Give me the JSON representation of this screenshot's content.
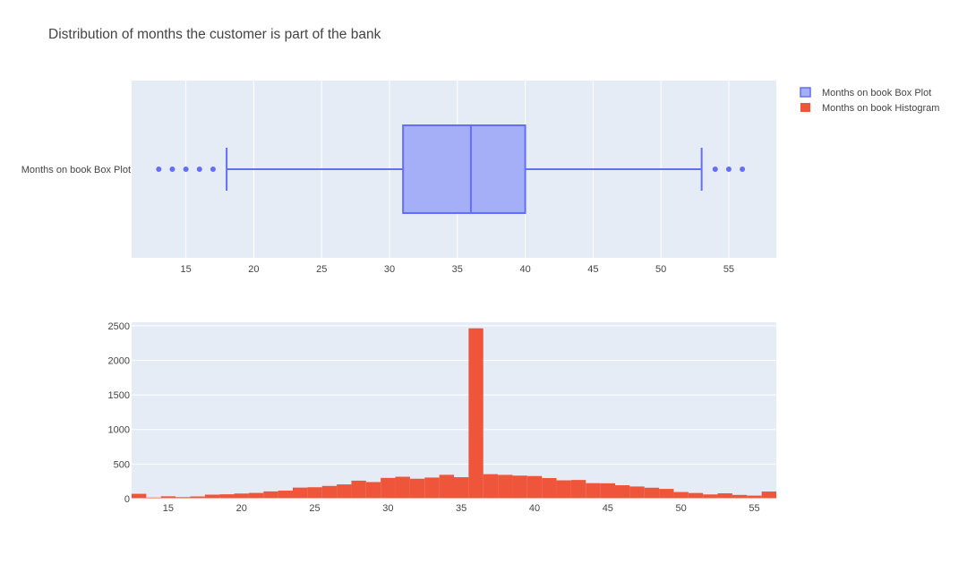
{
  "chart_data": [
    {
      "type": "box",
      "title": "Distribution of months the customer is part of the bank",
      "series_name": "Months on book Box Plot",
      "y_category_label": "Months on book Box Plot",
      "orientation": "horizontal",
      "stats": {
        "lower_fence": 18,
        "q1": 31,
        "median": 36,
        "q3": 40,
        "upper_fence": 53
      },
      "outliers": [
        13,
        14,
        15,
        16,
        17,
        54,
        55,
        56
      ],
      "xlim": [
        11,
        58.5
      ],
      "xticks": [
        15,
        20,
        25,
        30,
        35,
        40,
        45,
        50,
        55
      ],
      "grid": true,
      "colors": {
        "fill": "#a5aff7",
        "line": "#636efa"
      }
    },
    {
      "type": "bar",
      "series_name": "Months on book Histogram",
      "bin_starts": [
        13,
        14,
        15,
        16,
        17,
        18,
        19,
        20,
        21,
        22,
        23,
        24,
        25,
        26,
        27,
        28,
        29,
        30,
        31,
        32,
        33,
        34,
        35,
        36,
        37,
        38,
        39,
        40,
        41,
        42,
        43,
        44,
        45,
        46,
        47,
        48,
        49,
        50,
        51,
        52,
        53,
        54,
        55,
        56
      ],
      "values": [
        70,
        16,
        34,
        22,
        32,
        58,
        63,
        74,
        83,
        105,
        116,
        160,
        165,
        184,
        206,
        260,
        240,
        300,
        317,
        288,
        305,
        345,
        310,
        2463,
        354,
        344,
        333,
        327,
        298,
        265,
        270,
        224,
        222,
        194,
        176,
        158,
        141,
        96,
        82,
        61,
        77,
        54,
        44,
        103
      ],
      "xlim": [
        12.5,
        56.5
      ],
      "ylim": [
        0,
        2550
      ],
      "xticks": [
        15,
        20,
        25,
        30,
        35,
        40,
        45,
        50,
        55
      ],
      "yticks": [
        0,
        500,
        1000,
        1500,
        2000,
        2500
      ],
      "grid": true,
      "colors": {
        "bar": "#ef553b"
      }
    }
  ],
  "legend": {
    "position": "top-right",
    "items": [
      {
        "label": "Months on book Box Plot",
        "color": "#636efa",
        "fill": "#a5aff7"
      },
      {
        "label": "Months on book Histogram",
        "color": "#ef553b"
      }
    ]
  },
  "plot_bg": "#e5ecf6"
}
